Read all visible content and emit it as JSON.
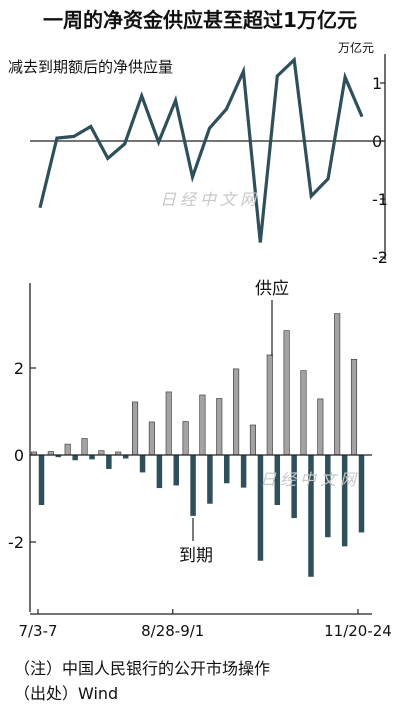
{
  "title": "一周的净资金供应甚至超过1万亿元",
  "chart_data": [
    {
      "type": "line",
      "subtitle": "减去到期额后的净供应量",
      "unit_label": "万亿元",
      "ylim": [
        -2,
        1.5
      ],
      "yticks": [
        -2,
        -1,
        0,
        1
      ],
      "values": [
        -1.15,
        0.05,
        0.08,
        0.25,
        -0.3,
        -0.05,
        0.78,
        -0.02,
        0.7,
        -0.62,
        0.22,
        0.55,
        1.2,
        -1.75,
        1.12,
        1.4,
        -0.95,
        -0.65,
        1.1,
        0.42
      ]
    },
    {
      "type": "bar",
      "ylim": [
        -3.5,
        3.5
      ],
      "yticks": [
        -2,
        0,
        2
      ],
      "x_tick_labels": [
        "7/3-7",
        "8/28-9/1",
        "11/20-24"
      ],
      "series": [
        {
          "name": "供应",
          "color": "#a3a3a3",
          "values": [
            0.07,
            0.08,
            0.25,
            0.38,
            0.1,
            0.07,
            1.22,
            0.76,
            1.45,
            0.77,
            1.38,
            1.3,
            1.98,
            0.69,
            2.3,
            2.86,
            1.94,
            1.29,
            3.25,
            2.2
          ]
        },
        {
          "name": "到期",
          "color": "#2f4f5a",
          "values": [
            -1.15,
            -0.05,
            -0.12,
            -0.1,
            -0.32,
            -0.08,
            -0.4,
            -0.76,
            -0.7,
            -1.4,
            -1.12,
            -0.65,
            -0.75,
            -2.43,
            -1.15,
            -1.45,
            -2.8,
            -1.89,
            -2.1,
            -1.78
          ]
        }
      ]
    }
  ],
  "notes": [
    "（注）中国人民银行的公开市场操作",
    "（出处）Wind"
  ],
  "watermark": "日经中文网"
}
